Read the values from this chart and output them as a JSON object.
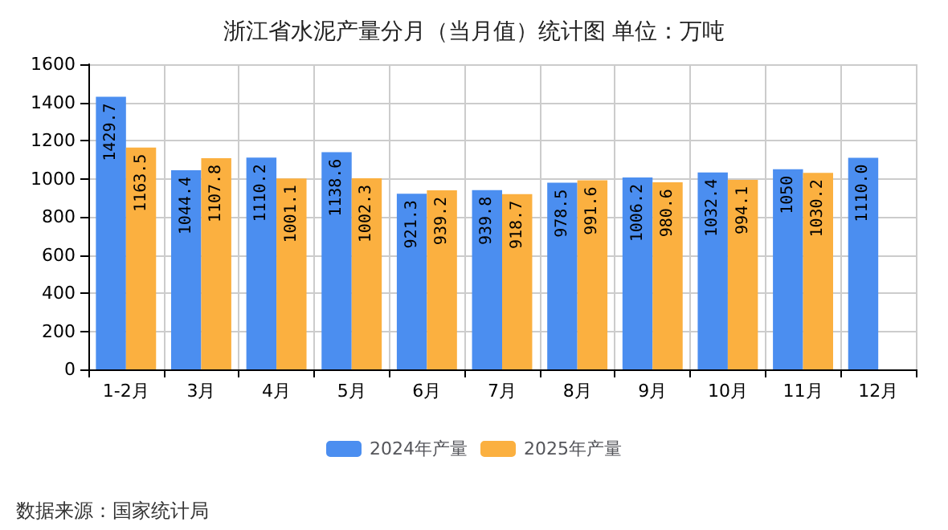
{
  "chart_data": {
    "type": "bar",
    "title": "浙江省水泥产量分月（当月值）统计图 单位：万吨",
    "categories": [
      "1-2月",
      "3月",
      "4月",
      "5月",
      "6月",
      "7月",
      "8月",
      "9月",
      "10月",
      "11月",
      "12月"
    ],
    "series": [
      {
        "name": "2024年产量",
        "color": "#4b8ef0",
        "values": [
          1429.7,
          1044.4,
          1110.2,
          1138.6,
          921.3,
          939.8,
          978.5,
          1006.2,
          1032.4,
          1050,
          1110.0
        ],
        "value_labels": [
          "1429.7",
          "1044.4",
          "1110.2",
          "1138.6",
          "921.3",
          "939.8",
          "978.5",
          "1006.2",
          "1032.4",
          "1050",
          "1110.0"
        ]
      },
      {
        "name": "2025年产量",
        "color": "#fbb040",
        "values": [
          1163.5,
          1107.8,
          1001.1,
          1002.3,
          939.2,
          918.7,
          991.6,
          980.6,
          994.1,
          1030.2,
          null
        ],
        "value_labels": [
          "1163.5",
          "1107.8",
          "1001.1",
          "1002.3",
          "939.2",
          "918.7",
          "991.6",
          "980.6",
          "994.1",
          "1030.2",
          null
        ]
      }
    ],
    "ylim": [
      0,
      1600
    ],
    "yticks": [
      0,
      200,
      400,
      600,
      800,
      1000,
      1200,
      1400,
      1600
    ],
    "grid": true,
    "legend": "bottom",
    "annotations": [
      "数据来源：国家统计局"
    ]
  }
}
